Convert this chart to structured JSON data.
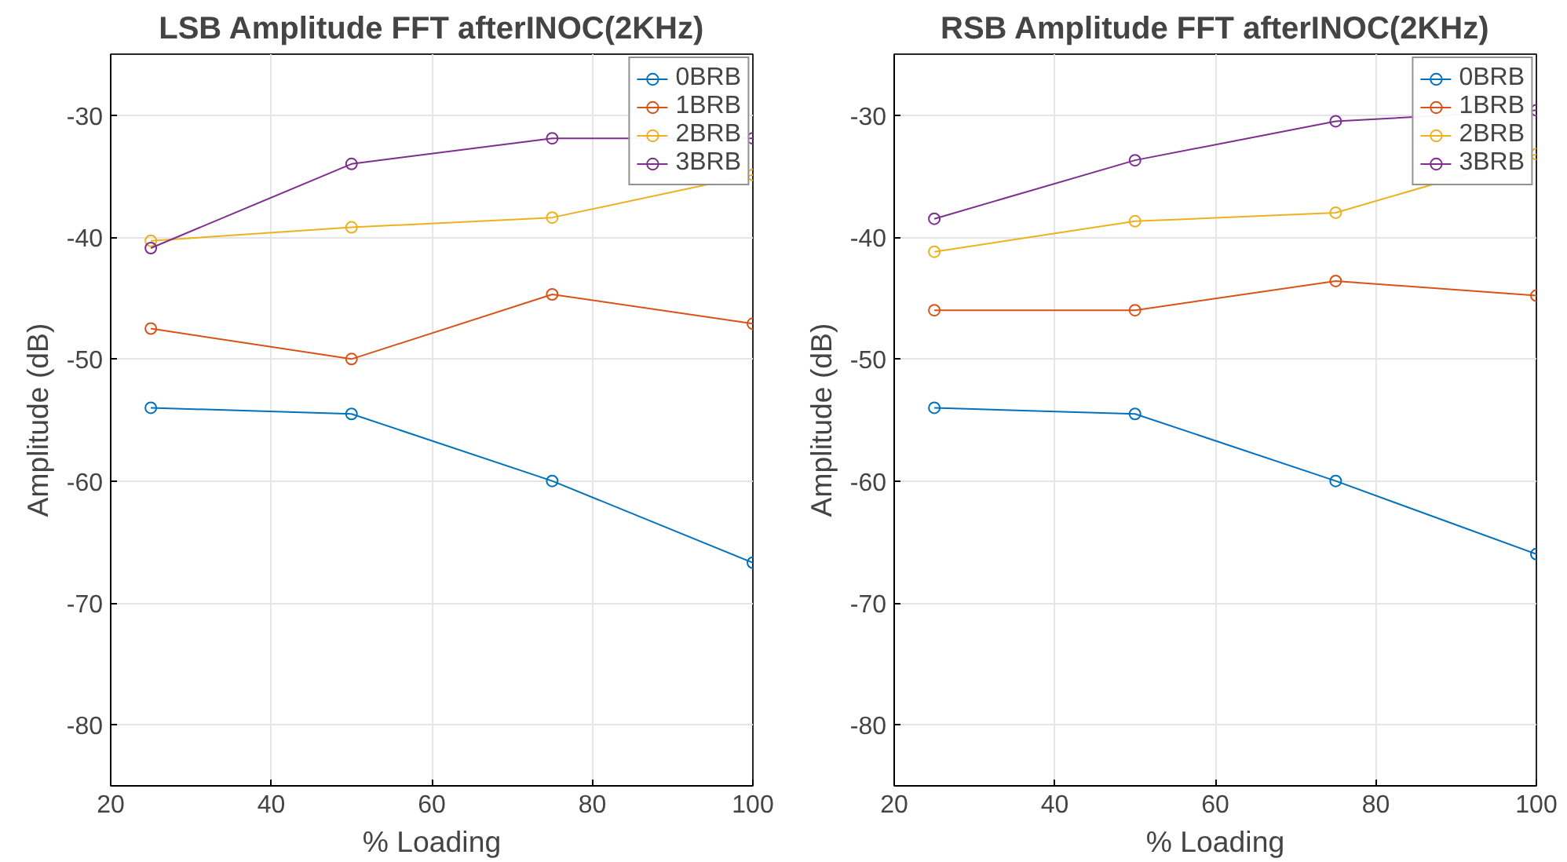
{
  "chart_data": [
    {
      "type": "line",
      "title": "LSB Amplitude FFT afterINOC(2KHz)",
      "xlabel": "% Loading",
      "ylabel": "Amplitude (dB)",
      "x": [
        25,
        50,
        75,
        100
      ],
      "xlim": [
        20,
        100
      ],
      "xticks": [
        20,
        40,
        60,
        80,
        100
      ],
      "ylim": [
        -85,
        -25
      ],
      "yticks": [
        -80,
        -70,
        -60,
        -50,
        -40,
        -30
      ],
      "grid": true,
      "legend": "top right",
      "marker": "circle",
      "line_style": "solid",
      "series": [
        {
          "name": "0BRB",
          "color": "#0072bd",
          "values": [
            -54.0,
            -54.5,
            -60.0,
            -66.7
          ]
        },
        {
          "name": "1BRB",
          "color": "#d95319",
          "values": [
            -47.5,
            -50.0,
            -44.7,
            -47.1
          ]
        },
        {
          "name": "2BRB",
          "color": "#edb120",
          "values": [
            -40.3,
            -39.2,
            -38.4,
            -34.9
          ]
        },
        {
          "name": "3BRB",
          "color": "#7e2f8e",
          "values": [
            -40.9,
            -34.0,
            -31.9,
            -31.9
          ]
        }
      ]
    },
    {
      "type": "line",
      "title": "RSB Amplitude FFT afterINOC(2KHz)",
      "xlabel": "% Loading",
      "ylabel": "Amplitude (dB)",
      "x": [
        25,
        50,
        75,
        100
      ],
      "xlim": [
        20,
        100
      ],
      "xticks": [
        20,
        40,
        60,
        80,
        100
      ],
      "ylim": [
        -85,
        -25
      ],
      "yticks": [
        -80,
        -70,
        -60,
        -50,
        -40,
        -30
      ],
      "grid": true,
      "legend": "top right",
      "marker": "circle",
      "line_style": "solid",
      "series": [
        {
          "name": "0BRB",
          "color": "#0072bd",
          "values": [
            -54.0,
            -54.5,
            -60.0,
            -66.0
          ]
        },
        {
          "name": "1BRB",
          "color": "#d95319",
          "values": [
            -46.0,
            -46.0,
            -43.6,
            -44.8
          ]
        },
        {
          "name": "2BRB",
          "color": "#edb120",
          "values": [
            -41.2,
            -38.7,
            -38.0,
            -33.2
          ]
        },
        {
          "name": "3BRB",
          "color": "#7e2f8e",
          "values": [
            -38.5,
            -33.7,
            -30.5,
            -29.6
          ]
        }
      ]
    }
  ]
}
